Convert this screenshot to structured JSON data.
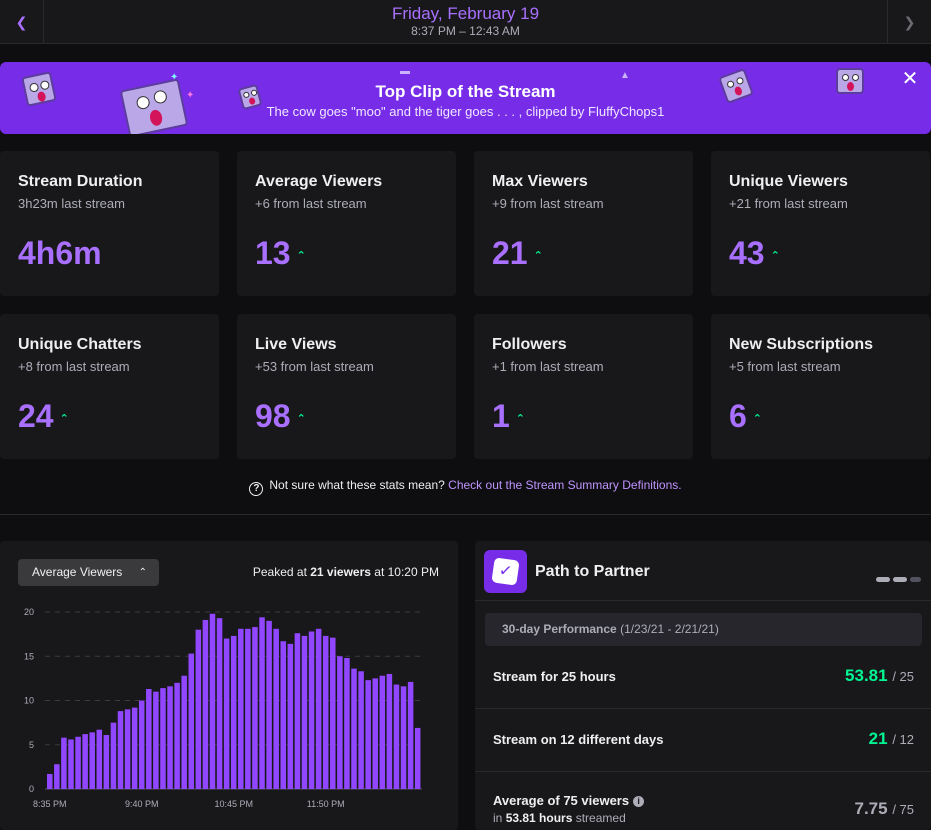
{
  "header": {
    "date": "Friday, February 19",
    "time_range": "8:37 PM – 12:43 AM",
    "prev_icon": "chevron-left-icon",
    "next_icon": "chevron-right-icon"
  },
  "clip": {
    "title": "Top Clip of the Stream",
    "subtitle": "The cow goes \"moo\" and the tiger goes . . . , clipped by FluffyChops1",
    "close_icon": "close-icon"
  },
  "stats": [
    {
      "label": "Stream Duration",
      "delta": "3h23m last stream",
      "value": "4h6m",
      "up": false
    },
    {
      "label": "Average Viewers",
      "delta": "+6 from last stream",
      "value": "13",
      "up": true
    },
    {
      "label": "Max Viewers",
      "delta": "+9 from last stream",
      "value": "21",
      "up": true
    },
    {
      "label": "Unique Viewers",
      "delta": "+21 from last stream",
      "value": "43",
      "up": true
    },
    {
      "label": "Unique Chatters",
      "delta": "+8 from last stream",
      "value": "24",
      "up": true
    },
    {
      "label": "Live Views",
      "delta": "+53 from last stream",
      "value": "98",
      "up": true
    },
    {
      "label": "Followers",
      "delta": "+1 from last stream",
      "value": "1",
      "up": true
    },
    {
      "label": "New Subscriptions",
      "delta": "+5 from last stream",
      "value": "6",
      "up": true
    }
  ],
  "help": {
    "text": "Not sure what these stats mean?",
    "link": "Check out the Stream Summary Definitions."
  },
  "chart_panel": {
    "select_value": "Average Viewers",
    "peak_prefix": "Peaked at ",
    "peak_value": "21 viewers",
    "peak_suffix": " at 10:20 PM"
  },
  "chart_data": {
    "type": "bar",
    "bar_color": "#9147ff",
    "ylim": [
      0,
      20
    ],
    "yticks": [
      "0",
      "5",
      "10",
      "15",
      "20"
    ],
    "xticks": [
      {
        "label": "8:35 PM",
        "index": 0
      },
      {
        "label": "9:40 PM",
        "index": 13
      },
      {
        "label": "10:45 PM",
        "index": 26
      },
      {
        "label": "11:50 PM",
        "index": 39
      }
    ],
    "values": [
      1.7,
      2.8,
      5.8,
      5.6,
      5.9,
      6.2,
      6.4,
      6.7,
      6.1,
      7.5,
      8.8,
      9.0,
      9.2,
      10.0,
      11.3,
      11.0,
      11.4,
      11.6,
      12.0,
      12.8,
      15.3,
      18.0,
      19.1,
      19.8,
      19.3,
      17.0,
      17.3,
      18.1,
      18.1,
      18.3,
      19.4,
      19.0,
      18.1,
      16.7,
      16.4,
      17.6,
      17.3,
      17.8,
      18.1,
      17.3,
      17.1,
      15.0,
      14.8,
      13.6,
      13.3,
      12.3,
      12.5,
      12.8,
      13.0,
      11.8,
      11.6,
      12.1,
      6.9
    ]
  },
  "partner": {
    "title": "Path to Partner",
    "badge_icon": "checkmark-badge-icon",
    "perf_label": "30-day Performance",
    "perf_range": "(1/23/21 - 2/21/21)",
    "rows": [
      {
        "text": "Stream for 25 hours",
        "value": "53.81",
        "total": "/ 25"
      },
      {
        "text": "Stream on 12 different days",
        "value": "21",
        "total": "/ 12"
      },
      {
        "text": "Average of 75 viewers",
        "value": "7.75",
        "total": "/ 75",
        "sub_prefix": "in ",
        "sub_bold": "53.81 hours",
        "sub_suffix": " streamed"
      }
    ]
  }
}
